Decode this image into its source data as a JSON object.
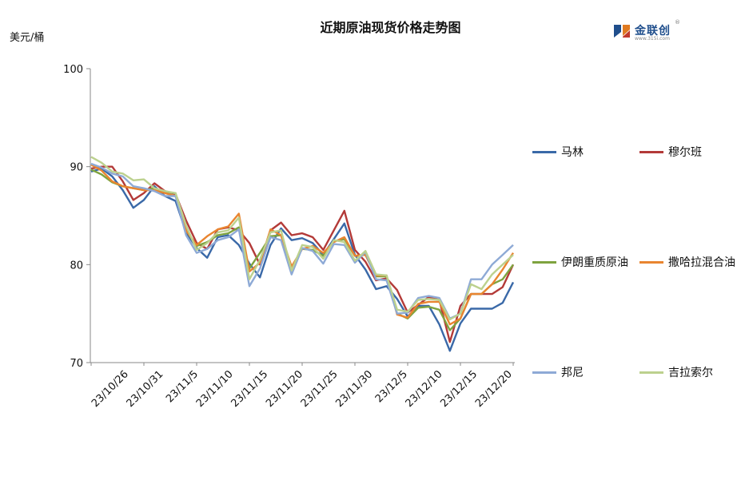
{
  "title": "近期原油现货价格走势图",
  "unit": "美元/桶",
  "logo": {
    "text": "金联创",
    "sub": "www.315i.com",
    "reg": "®"
  },
  "colors": {
    "马林": "#3a69a8",
    "穆尔班": "#b33a38",
    "伊朗重质原油": "#7fa33f",
    "撒哈拉混合油": "#e98530",
    "邦尼": "#8eaad6",
    "吉拉索尔": "#bcd18e"
  },
  "chart_data": {
    "type": "line",
    "ylim": [
      70,
      100
    ],
    "yticks": [
      70,
      80,
      90,
      100
    ],
    "x_tick_labels": [
      "23/10/26",
      "23/10/31",
      "23/11/5",
      "23/11/10",
      "23/11/15",
      "23/11/20",
      "23/11/25",
      "23/11/30",
      "23/12/5",
      "23/12/10",
      "23/12/15",
      "23/12/20"
    ],
    "x": [
      "10/26",
      "10/27",
      "10/30",
      "10/31",
      "11/01",
      "11/02",
      "11/03",
      "11/06",
      "11/07",
      "11/08",
      "11/09",
      "11/10",
      "11/13",
      "11/14",
      "11/15",
      "11/16",
      "11/17",
      "11/20",
      "11/21",
      "11/22",
      "11/23",
      "11/24",
      "11/27",
      "11/28",
      "11/29",
      "11/30",
      "12/01",
      "12/04",
      "12/05",
      "12/06",
      "12/07",
      "12/08",
      "12/11",
      "12/12",
      "12/13",
      "12/14",
      "12/15",
      "12/18",
      "12/19",
      "12/20",
      "12/21"
    ],
    "series": [
      {
        "name": "马林",
        "values": [
          89.5,
          89.8,
          89.0,
          87.6,
          85.8,
          86.6,
          88.0,
          87.0,
          86.5,
          83.3,
          81.7,
          80.7,
          82.8,
          83.0,
          82.0,
          80.1,
          78.7,
          82.0,
          83.7,
          82.5,
          82.7,
          82.2,
          81.0,
          82.6,
          84.2,
          81.0,
          79.5,
          77.5,
          77.8,
          76.5,
          74.7,
          75.8,
          75.8,
          73.9,
          71.2,
          74.0,
          75.5,
          75.5,
          75.5,
          76.1,
          78.2
        ]
      },
      {
        "name": "穆尔班",
        "values": [
          89.8,
          90.0,
          90.0,
          88.5,
          86.6,
          87.3,
          88.3,
          87.5,
          87.2,
          84.5,
          82.2,
          81.6,
          83.6,
          83.8,
          83.5,
          82.2,
          80.0,
          83.5,
          84.3,
          83.0,
          83.2,
          82.8,
          81.5,
          83.5,
          85.5,
          81.5,
          80.3,
          78.4,
          78.6,
          77.4,
          75.1,
          75.9,
          76.7,
          76.4,
          72.1,
          75.8,
          77.0,
          77.0,
          77.0,
          77.7,
          80.0
        ]
      },
      {
        "name": "伊朗重质原油",
        "values": [
          89.7,
          89.2,
          88.4,
          88.0,
          87.8,
          87.6,
          87.8,
          87.4,
          87.3,
          83.5,
          81.9,
          82.3,
          83.0,
          83.2,
          83.8,
          79.6,
          81.2,
          82.9,
          83.0,
          79.7,
          81.6,
          81.5,
          80.9,
          82.4,
          82.6,
          80.9,
          81.0,
          78.8,
          78.8,
          75.0,
          74.5,
          75.6,
          75.7,
          75.4,
          73.3,
          74.5,
          77.0,
          77.0,
          78.0,
          78.5,
          80.0
        ]
      },
      {
        "name": "撒哈拉混合油",
        "values": [
          90.2,
          89.6,
          88.5,
          88.0,
          87.8,
          87.6,
          87.6,
          87.3,
          87.0,
          83.5,
          82.0,
          82.9,
          83.6,
          83.9,
          85.2,
          79.3,
          80.2,
          83.6,
          83.0,
          79.8,
          81.6,
          81.9,
          81.2,
          82.3,
          82.8,
          80.9,
          81.0,
          78.9,
          78.9,
          74.9,
          74.6,
          76.0,
          76.2,
          76.2,
          73.9,
          74.5,
          77.0,
          77.0,
          78.0,
          79.5,
          81.2
        ]
      },
      {
        "name": "邦尼",
        "values": [
          90.3,
          89.9,
          89.3,
          89.0,
          88.0,
          87.8,
          87.5,
          87.0,
          87.0,
          83.0,
          81.2,
          81.6,
          82.5,
          82.8,
          83.6,
          77.8,
          79.6,
          82.8,
          82.5,
          79.0,
          81.7,
          81.4,
          80.1,
          82.1,
          82.0,
          80.2,
          81.3,
          78.5,
          78.4,
          75.0,
          75.1,
          76.6,
          76.8,
          76.6,
          74.5,
          75.0,
          78.5,
          78.5,
          80.0,
          81.0,
          82.0
        ]
      },
      {
        "name": "吉拉索尔",
        "values": [
          91.0,
          90.4,
          89.5,
          89.3,
          88.6,
          88.7,
          87.8,
          87.5,
          87.3,
          84.0,
          81.5,
          82.2,
          83.3,
          83.5,
          84.8,
          78.5,
          80.5,
          83.3,
          83.5,
          79.4,
          82.0,
          81.8,
          80.6,
          82.5,
          82.3,
          80.4,
          81.4,
          79.0,
          78.9,
          75.4,
          75.2,
          76.4,
          76.5,
          76.4,
          74.4,
          75.0,
          78.0,
          77.5,
          79.0,
          80.0,
          81.0
        ]
      }
    ]
  }
}
